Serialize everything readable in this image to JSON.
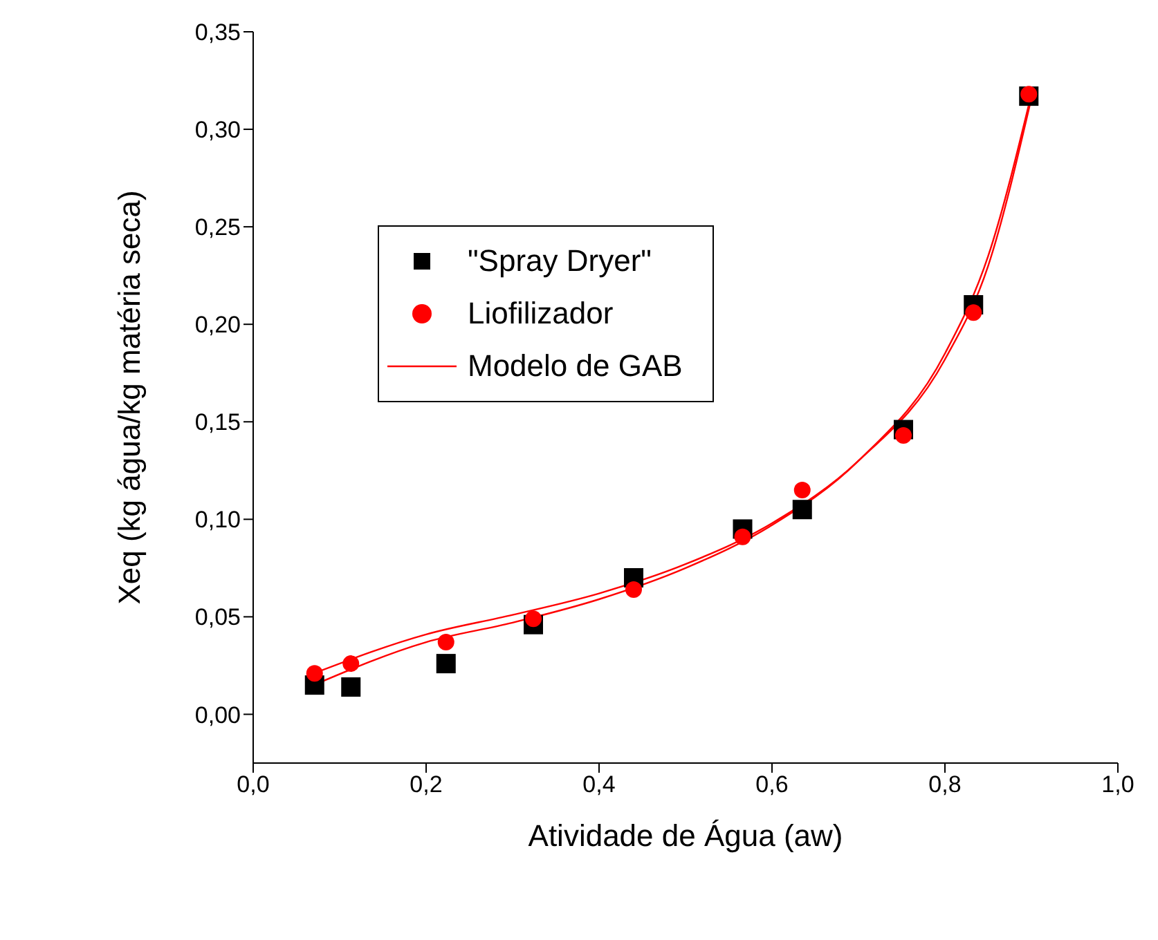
{
  "chart_data": {
    "type": "scatter",
    "xlabel": "Atividade de Água (aw)",
    "ylabel": "Xeq (kg água/kg matéria seca)",
    "xlim": [
      0,
      1
    ],
    "xticks": [
      {
        "value": 0,
        "label": "0,0"
      },
      {
        "value": 0.2,
        "label": "0,2"
      },
      {
        "value": 0.4,
        "label": "0,4"
      },
      {
        "value": 0.6,
        "label": "0,6"
      },
      {
        "value": 0.8,
        "label": "0,8"
      },
      {
        "value": 1,
        "label": "1,0"
      }
    ],
    "ylim": [
      -0.025,
      0.35
    ],
    "yticks": [
      {
        "value": 0,
        "label": "0,00"
      },
      {
        "value": 0.05,
        "label": "0,05"
      },
      {
        "value": 0.1,
        "label": "0,10"
      },
      {
        "value": 0.15,
        "label": "0,15"
      },
      {
        "value": 0.2,
        "label": "0,20"
      },
      {
        "value": 0.25,
        "label": "0,25"
      },
      {
        "value": 0.3,
        "label": "0,30"
      },
      {
        "value": 0.35,
        "label": "0,35"
      }
    ],
    "grid": false,
    "legend": "top",
    "series": [
      {
        "name": "\"Spray Dryer\"",
        "marker": "square",
        "color": "#000000",
        "x": [
          0.071,
          0.113,
          0.223,
          0.324,
          0.44,
          0.566,
          0.635,
          0.752,
          0.833,
          0.897
        ],
        "values": [
          0.015,
          0.014,
          0.026,
          0.046,
          0.07,
          0.095,
          0.105,
          0.146,
          0.21,
          0.317
        ]
      },
      {
        "name": "Liofilizador",
        "marker": "circle",
        "color": "#ff0000",
        "x": [
          0.071,
          0.113,
          0.223,
          0.324,
          0.44,
          0.566,
          0.635,
          0.752,
          0.833,
          0.897
        ],
        "values": [
          0.021,
          0.026,
          0.037,
          0.049,
          0.064,
          0.091,
          0.115,
          0.143,
          0.206,
          0.318
        ]
      },
      {
        "name": "Modelo de GAB",
        "type": "line",
        "marker": "none",
        "color": "#ff0000",
        "x": [
          0.07,
          0.2,
          0.3,
          0.4,
          0.5,
          0.6,
          0.7,
          0.8,
          0.85,
          0.9
        ],
        "values": [
          0.015,
          0.037,
          0.047,
          0.059,
          0.075,
          0.097,
          0.13,
          0.185,
          0.235,
          0.318
        ]
      },
      {
        "type": "line",
        "marker": "none",
        "color": "#ff0000",
        "x": [
          0.07,
          0.2,
          0.3,
          0.4,
          0.5,
          0.6,
          0.7,
          0.8,
          0.85,
          0.9
        ],
        "values": [
          0.021,
          0.041,
          0.051,
          0.062,
          0.077,
          0.098,
          0.13,
          0.182,
          0.23,
          0.316
        ]
      }
    ]
  }
}
